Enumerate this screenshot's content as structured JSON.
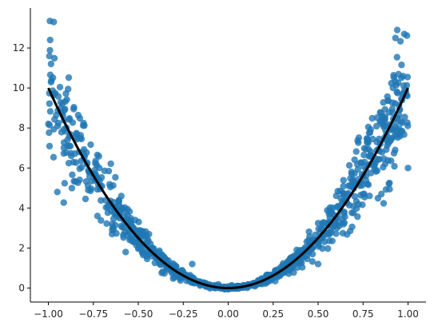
{
  "chart_data": {
    "type": "scatter",
    "title": "",
    "xlabel": "",
    "ylabel": "",
    "xlim": [
      -1.1,
      1.1
    ],
    "ylim": [
      -0.7,
      14.0
    ],
    "grid": false,
    "xticks": [
      -1.0,
      -0.75,
      -0.5,
      -0.25,
      0.0,
      0.25,
      0.5,
      0.75,
      1.0
    ],
    "xtick_labels": [
      "−1.00",
      "−0.75",
      "−0.50",
      "−0.25",
      "0.00",
      "0.25",
      "0.50",
      "0.75",
      "1.00"
    ],
    "yticks": [
      0,
      2,
      4,
      6,
      8,
      10,
      12
    ],
    "ytick_labels": [
      "0",
      "2",
      "4",
      "6",
      "8",
      "10",
      "12"
    ],
    "series": [
      {
        "kind": "scatter",
        "color": "#1f77b4",
        "alpha": 0.8,
        "generator": {
          "x_range": [
            -1.0,
            1.0
          ],
          "count": 1000,
          "model": "y = 10 * x^2",
          "noise": "multiplicative, spread grows with |x|"
        },
        "notable_points": [
          {
            "x": -0.97,
            "y": 13.3
          },
          {
            "x": -0.99,
            "y": 12.4
          },
          {
            "x": 0.94,
            "y": 12.9
          },
          {
            "x": 0.93,
            "y": 12.5
          },
          {
            "x": -0.95,
            "y": 4.8
          },
          {
            "x": 1.0,
            "y": 6.0
          },
          {
            "x": 0.5,
            "y": 1.2
          },
          {
            "x": -0.57,
            "y": 1.8
          },
          {
            "x": -0.2,
            "y": 1.2
          }
        ]
      },
      {
        "kind": "line",
        "color": "#000000",
        "function": "y = 10 * x^2",
        "x_range": [
          -1.0,
          1.0
        ]
      }
    ]
  }
}
